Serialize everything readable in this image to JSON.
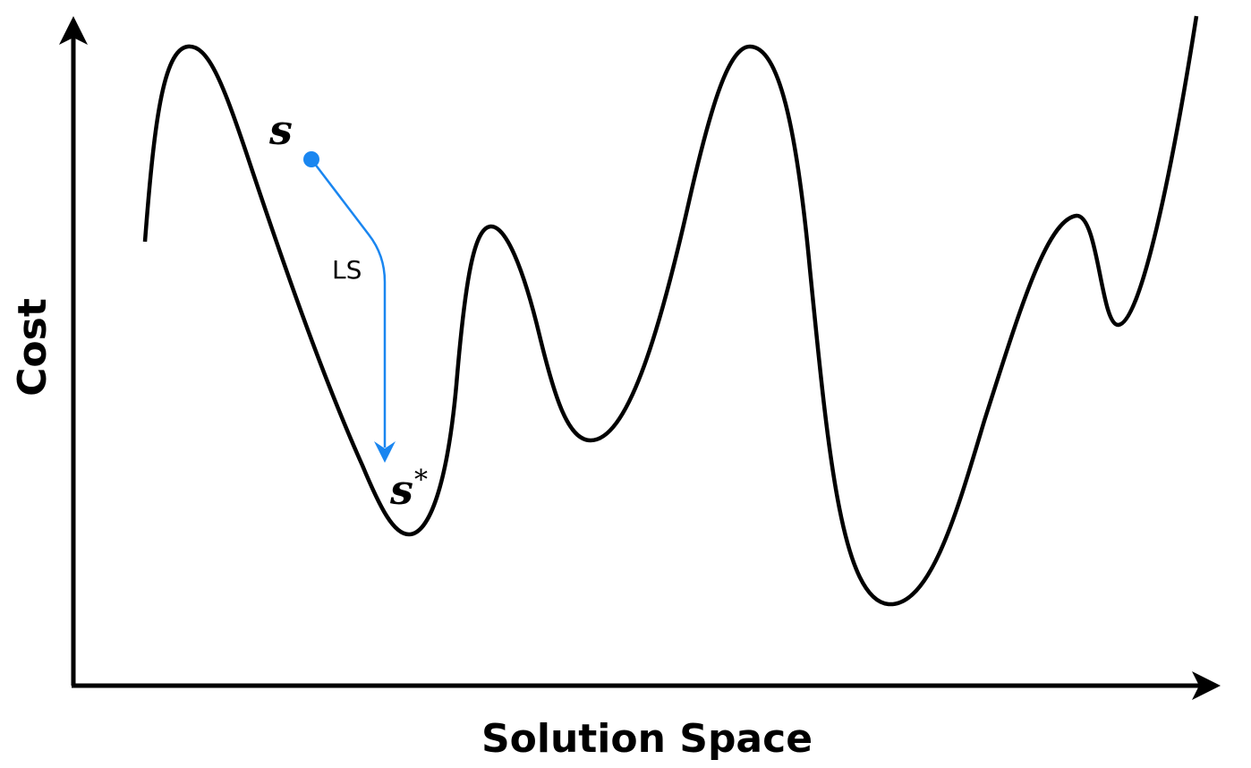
{
  "axes": {
    "x_label": "Solution Space",
    "y_label": "Cost"
  },
  "points": {
    "start_label": "s",
    "optimum_label": "s",
    "optimum_superscript": "*"
  },
  "transition": {
    "label": "LS"
  },
  "colors": {
    "curve": "#000000",
    "axes": "#000000",
    "search_path": "#1a86f0"
  }
}
